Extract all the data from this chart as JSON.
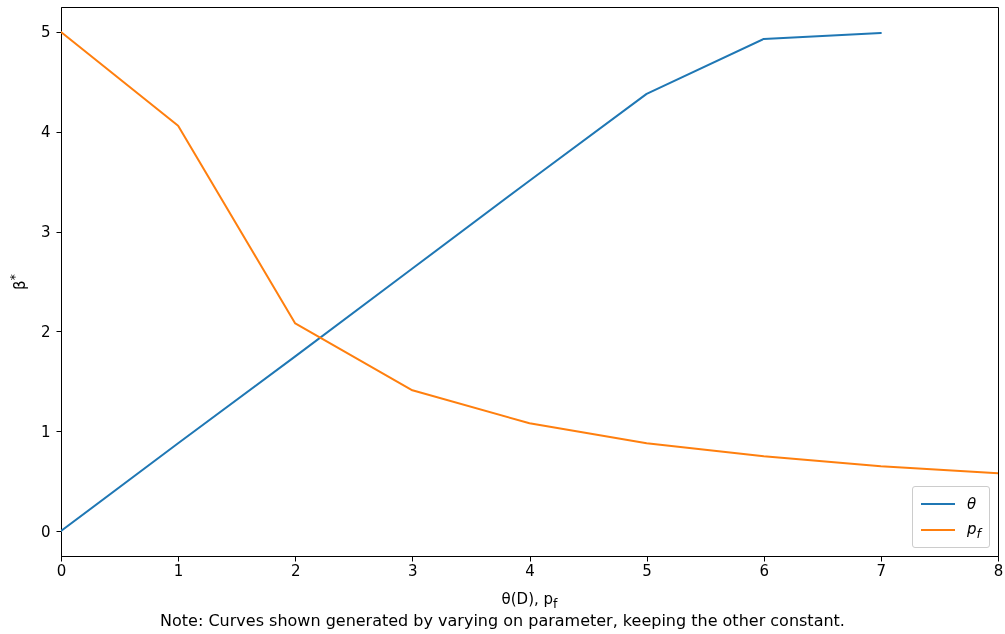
{
  "chart_data": {
    "type": "line",
    "xlabel": "θ(D), p$_{f}$",
    "ylabel": "β$^{*}$",
    "annotations": [
      "Note: Curves shown generated by varying on parameter, keeping the other constant."
    ],
    "series": [
      {
        "name": "θ",
        "color": "#1f77b4",
        "x": [
          0,
          1,
          2,
          3,
          4,
          5,
          6,
          7
        ],
        "values": [
          0,
          0.88,
          1.75,
          2.63,
          3.51,
          4.38,
          4.93,
          4.99
        ]
      },
      {
        "name": "p$_{f}$",
        "color": "#ff7f0e",
        "x": [
          0,
          1,
          2,
          3,
          4,
          5,
          6,
          7,
          8
        ],
        "values": [
          5.0,
          4.06,
          2.08,
          1.41,
          1.08,
          0.88,
          0.75,
          0.65,
          0.58
        ]
      }
    ],
    "xlim": [
      0,
      8
    ],
    "xticks": [
      0,
      1,
      2,
      3,
      4,
      5,
      6,
      7,
      8
    ],
    "ylim": [
      -0.25,
      5.25
    ],
    "yticks": [
      0,
      1,
      2,
      3,
      4,
      5
    ],
    "grid": false,
    "legend": "bottom right",
    "line_style": "solid",
    "marker": "none"
  }
}
